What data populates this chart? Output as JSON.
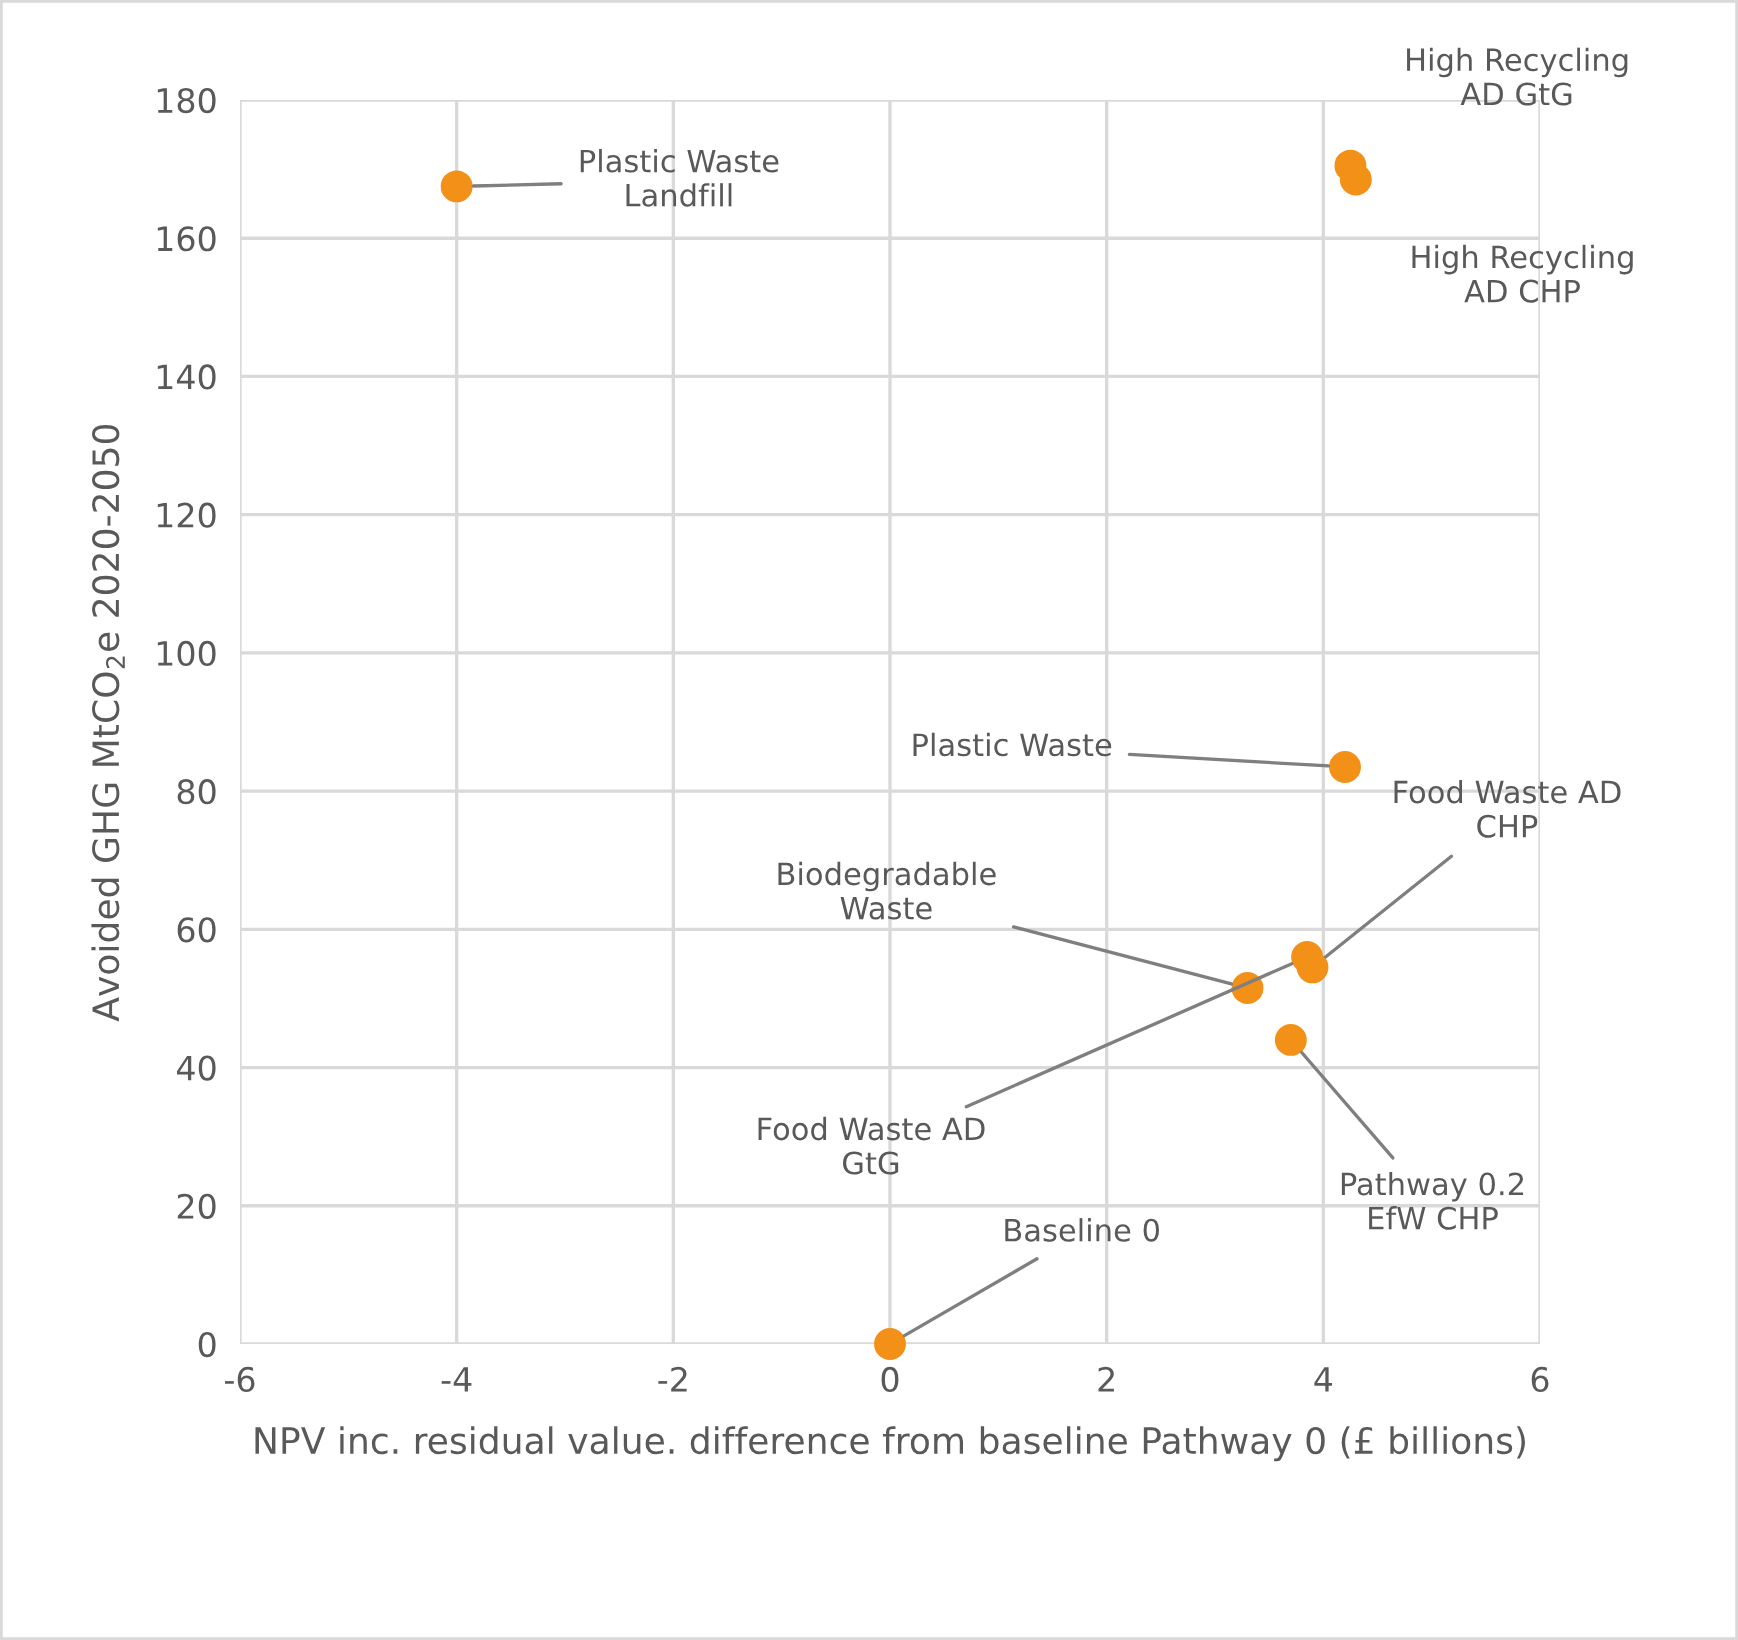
{
  "chart_data": {
    "type": "scatter",
    "xlabel": "NPV inc. residual value. difference from baseline Pathway 0 (£ billions)",
    "ylabel": "Avoided GHG MtCO$_{2}$e 2020-2050",
    "x": [
      -4.0,
      4.25,
      4.3,
      4.2,
      3.9,
      3.85,
      3.3,
      3.7,
      0.0
    ],
    "series": [
      {
        "color": "#f39018",
        "values": [
          167.5,
          170.5,
          168.5,
          83.5,
          54.5,
          56,
          51.5,
          44,
          0
        ]
      }
    ],
    "annotations": [
      {
        "text": "Plastic Waste Landfill",
        "x": -4.0,
        "y": 167.5
      },
      {
        "text": "High Recycling AD GtG",
        "x": 4.25,
        "y": 170.5
      },
      {
        "text": "High Recycling AD CHP",
        "x": 4.3,
        "y": 168.5
      },
      {
        "text": "Plastic Waste",
        "x": 4.2,
        "y": 83.5
      },
      {
        "text": "Food Waste AD CHP",
        "x": 3.9,
        "y": 54.5
      },
      {
        "text": "Food Waste AD GtG",
        "x": 3.85,
        "y": 56
      },
      {
        "text": "Biodegradable Waste",
        "x": 3.3,
        "y": 51.5
      },
      {
        "text": "Pathway 0.2 EfW CHP",
        "x": 3.7,
        "y": 44
      },
      {
        "text": "Baseline 0",
        "x": 0.0,
        "y": 0
      }
    ],
    "xlim": [
      -6,
      6
    ],
    "xticks": [
      -6,
      -4,
      -2,
      0,
      2,
      4,
      6
    ],
    "ylim": [
      0,
      180
    ],
    "yticks": [
      0,
      20,
      40,
      60,
      80,
      100,
      120,
      140,
      160,
      180
    ],
    "grid": true,
    "marker": "circle"
  }
}
